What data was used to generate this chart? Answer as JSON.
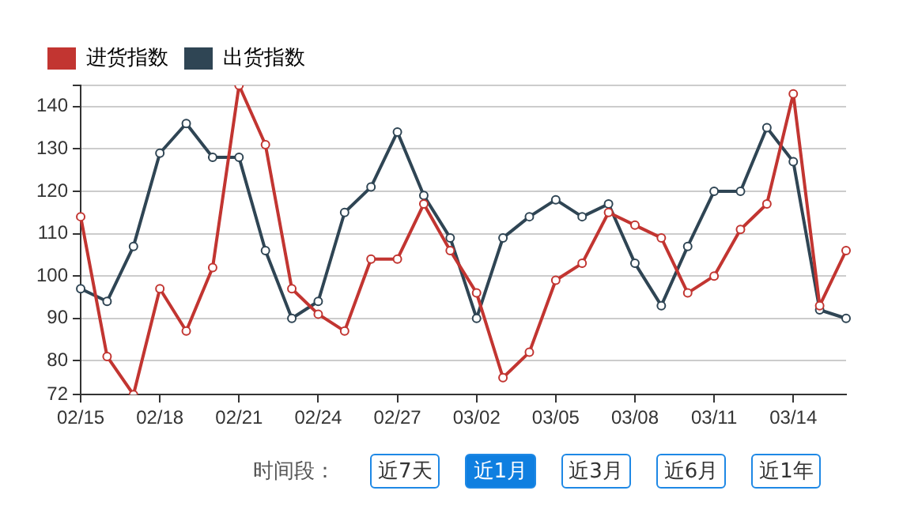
{
  "chart_data": {
    "type": "line",
    "categories": [
      "02/15",
      null,
      null,
      "02/18",
      null,
      null,
      "02/21",
      null,
      null,
      "02/24",
      null,
      null,
      "02/27",
      null,
      null,
      "03/02",
      null,
      null,
      "03/05",
      null,
      null,
      "03/08",
      null,
      null,
      "03/11",
      null,
      null,
      "03/14",
      null,
      null
    ],
    "series": [
      {
        "name": "进货指数",
        "color": "#c23531",
        "values": [
          114,
          81,
          72,
          97,
          87,
          102,
          145,
          131,
          97,
          91,
          87,
          104,
          104,
          117,
          106,
          96,
          76,
          82,
          99,
          103,
          115,
          112,
          109,
          96,
          100,
          111,
          117,
          143,
          93,
          106
        ]
      },
      {
        "name": "出货指数",
        "color": "#2f4554",
        "values": [
          97,
          94,
          107,
          129,
          136,
          128,
          128,
          106,
          90,
          94,
          115,
          121,
          134,
          119,
          109,
          90,
          109,
          114,
          118,
          114,
          117,
          103,
          93,
          107,
          120,
          120,
          135,
          127,
          92,
          90
        ]
      }
    ],
    "ylim": [
      72,
      145
    ],
    "yticks": [
      72,
      80,
      90,
      100,
      110,
      120,
      130,
      140,
      {
        "value": 145,
        "label": null
      }
    ],
    "grid": "y",
    "legend": "top left",
    "marker": "circle",
    "line_style": "solid",
    "annotations": [
      "时间段：",
      "近7天",
      "近1月",
      "近3月",
      "近6月",
      "近1年"
    ]
  }
}
